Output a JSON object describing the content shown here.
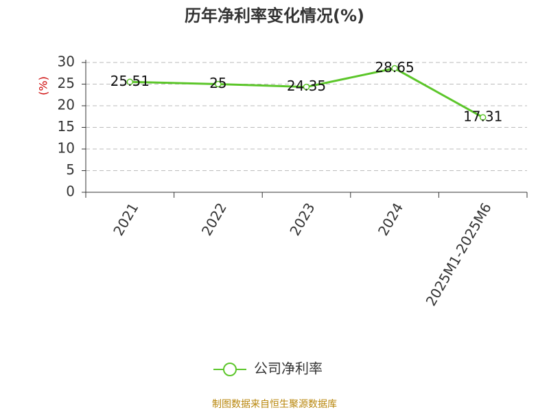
{
  "chart_data": {
    "type": "line",
    "title": "历年净利率变化情况(%)",
    "y_label": "(%)",
    "categories": [
      "2021",
      "2022",
      "2023",
      "2024",
      "2025M1-2025M6"
    ],
    "series": [
      {
        "name": "公司净利率",
        "color": "#5cc62a",
        "values": [
          25.51,
          25,
          24.35,
          28.65,
          17.31
        ]
      }
    ],
    "ylim": [
      0,
      30
    ],
    "yticks": [
      0,
      5,
      10,
      15,
      20,
      25,
      30
    ],
    "grid": true,
    "source": "制图数据来自恒生聚源数据库"
  }
}
